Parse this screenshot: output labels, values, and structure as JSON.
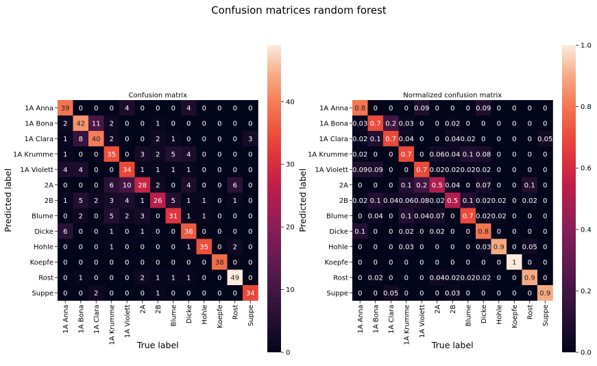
{
  "figure_title": "Confusion matrices random forest",
  "chart_data": [
    {
      "type": "heatmap",
      "title": "Confusion matrix",
      "xlabel": "True label",
      "ylabel": "Predicted label",
      "rows": [
        "1A Anna",
        "1A Bona",
        "1A Clara",
        "1A Krumme",
        "1A Violett",
        "2A",
        "2B",
        "Blume",
        "Dicke",
        "Hohle",
        "Koepfe",
        "Rost",
        "Suppe"
      ],
      "cols": [
        "1A Anna",
        "1A Bona",
        "1A Clara",
        "1A Krumme",
        "1A Violett",
        "2A",
        "2B",
        "Blume",
        "Dicke",
        "Hohle",
        "Koepfe",
        "Rost",
        "Suppe"
      ],
      "values": [
        [
          "39",
          "0",
          "0",
          "0",
          "4",
          "0",
          "0",
          "0",
          "4",
          "0",
          "0",
          "0",
          "0"
        ],
        [
          "2",
          "42",
          "11",
          "2",
          "0",
          "0",
          "1",
          "0",
          "0",
          "0",
          "0",
          "0",
          "0"
        ],
        [
          "1",
          "8",
          "40",
          "2",
          "0",
          "0",
          "2",
          "1",
          "0",
          "0",
          "0",
          "0",
          "3"
        ],
        [
          "1",
          "0",
          "0",
          "35",
          "0",
          "3",
          "2",
          "5",
          "4",
          "0",
          "0",
          "0",
          "0"
        ],
        [
          "4",
          "4",
          "0",
          "0",
          "34",
          "1",
          "1",
          "1",
          "1",
          "0",
          "0",
          "0",
          "0"
        ],
        [
          "0",
          "0",
          "0",
          "6",
          "10",
          "28",
          "2",
          "0",
          "4",
          "0",
          "0",
          "6",
          "0"
        ],
        [
          "1",
          "5",
          "2",
          "3",
          "4",
          "1",
          "26",
          "5",
          "1",
          "1",
          "0",
          "1",
          "0"
        ],
        [
          "0",
          "2",
          "0",
          "5",
          "2",
          "3",
          "0",
          "31",
          "1",
          "1",
          "0",
          "0",
          "0"
        ],
        [
          "6",
          "0",
          "0",
          "1",
          "0",
          "1",
          "0",
          "0",
          "36",
          "0",
          "0",
          "0",
          "0"
        ],
        [
          "0",
          "0",
          "0",
          "1",
          "0",
          "0",
          "0",
          "0",
          "1",
          "35",
          "0",
          "2",
          "0"
        ],
        [
          "0",
          "0",
          "0",
          "0",
          "0",
          "0",
          "0",
          "0",
          "0",
          "0",
          "38",
          "0",
          "0"
        ],
        [
          "0",
          "1",
          "0",
          "0",
          "0",
          "2",
          "1",
          "1",
          "1",
          "0",
          "0",
          "49",
          "0"
        ],
        [
          "0",
          "0",
          "2",
          "0",
          "0",
          "0",
          "1",
          "0",
          "0",
          "0",
          "0",
          "0",
          "34"
        ]
      ],
      "colorbar": {
        "min": 0,
        "max": 49,
        "ticks": [
          0,
          10,
          20,
          30,
          40
        ],
        "tick_labels": [
          "0",
          "10",
          "20",
          "30",
          "40"
        ]
      },
      "colormap": "rocket"
    },
    {
      "type": "heatmap",
      "title": "Normalized confusion matrix",
      "xlabel": "True label",
      "ylabel": "Predicted label",
      "rows": [
        "1A Anna",
        "1A Bona",
        "1A Clara",
        "1A Krumme",
        "1A Violett",
        "2A",
        "2B",
        "Blume",
        "Dicke",
        "Hohle",
        "Koepfe",
        "Rost",
        "Suppe"
      ],
      "cols": [
        "1A Anna",
        "1A Bona",
        "1A Clara",
        "1A Krumme",
        "1A Violett",
        "2A",
        "2B",
        "Blume",
        "Dicke",
        "Hohle",
        "Koepfe",
        "Rost",
        "Suppe"
      ],
      "values": [
        [
          "0.8",
          "0",
          "0",
          "0",
          "0.09",
          "0",
          "0",
          "0",
          "0.09",
          "0",
          "0",
          "0",
          "0"
        ],
        [
          "0.03",
          "0.7",
          "0.2",
          "0.03",
          "0",
          "0",
          "0.02",
          "0",
          "0",
          "0",
          "0",
          "0",
          "0"
        ],
        [
          "0.02",
          "0.1",
          "0.7",
          "0.04",
          "0",
          "0",
          "0.04",
          "0.02",
          "0",
          "0",
          "0",
          "0",
          "0.05"
        ],
        [
          "0.02",
          "0",
          "0",
          "0.7",
          "0",
          "0.06",
          "0.04",
          "0.1",
          "0.08",
          "0",
          "0",
          "0",
          "0"
        ],
        [
          "0.09",
          "0.09",
          "0",
          "0",
          "0.7",
          "0.02",
          "0.02",
          "0.02",
          "0.02",
          "0",
          "0",
          "0",
          "0"
        ],
        [
          "0",
          "0",
          "0",
          "0.1",
          "0.2",
          "0.5",
          "0.04",
          "0",
          "0.07",
          "0",
          "0",
          "0.1",
          "0"
        ],
        [
          "0.02",
          "0.1",
          "0.04",
          "0.06",
          "0.08",
          "0.02",
          "0.5",
          "0.1",
          "0.02",
          "0.02",
          "0",
          "0.02",
          "0"
        ],
        [
          "0",
          "0.04",
          "0",
          "0.1",
          "0.04",
          "0.07",
          "0",
          "0.7",
          "0.02",
          "0.02",
          "0",
          "0",
          "0"
        ],
        [
          "0.1",
          "0",
          "0",
          "0.02",
          "0",
          "0.02",
          "0",
          "0",
          "0.8",
          "0",
          "0",
          "0",
          "0"
        ],
        [
          "0",
          "0",
          "0",
          "0.03",
          "0",
          "0",
          "0",
          "0",
          "0.03",
          "0.9",
          "0",
          "0.05",
          "0"
        ],
        [
          "0",
          "0",
          "0",
          "0",
          "0",
          "0",
          "0",
          "0",
          "0",
          "0",
          "1",
          "0",
          "0"
        ],
        [
          "0",
          "0.02",
          "0",
          "0",
          "0",
          "0.04",
          "0.02",
          "0.02",
          "0.02",
          "0",
          "0",
          "0.9",
          "0"
        ],
        [
          "0",
          "0",
          "0.05",
          "0",
          "0",
          "0",
          "0.03",
          "0",
          "0",
          "0",
          "0",
          "0",
          "0.9"
        ]
      ],
      "colorbar": {
        "min": 0,
        "max": 1,
        "ticks": [
          0,
          0.2,
          0.4,
          0.6,
          0.8,
          1.0
        ],
        "tick_labels": [
          "0.0",
          "0.2",
          "0.4",
          "0.6",
          "0.8",
          "1.0"
        ]
      },
      "colormap": "rocket"
    }
  ]
}
